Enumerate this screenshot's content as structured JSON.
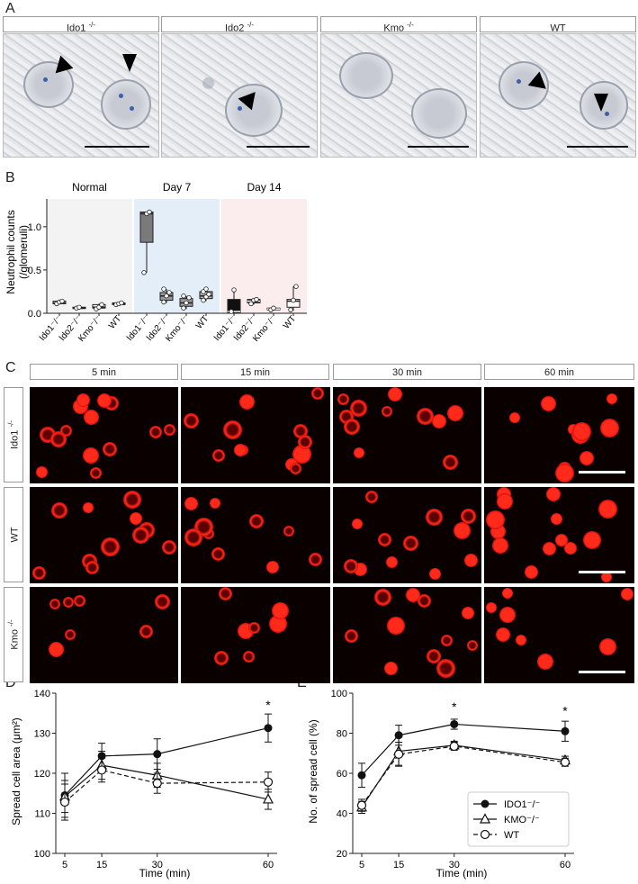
{
  "panels": {
    "a": "A",
    "b": "B",
    "c": "C",
    "d": "D",
    "e": "E"
  },
  "panel_a": {
    "headers": [
      {
        "base": "Ido1",
        "sup": "-/-"
      },
      {
        "base": "Ido2",
        "sup": "-/-"
      },
      {
        "base": "Kmo",
        "sup": "-/-"
      },
      {
        "base": "WT",
        "sup": ""
      }
    ]
  },
  "panel_c": {
    "time_headers": [
      "5 min",
      "15 min",
      "30 min",
      "60 min"
    ],
    "row_labels": [
      {
        "base": "Ido1",
        "sup": "-/-"
      },
      {
        "base": "WT",
        "sup": ""
      },
      {
        "base": "Kmo",
        "sup": "-/-"
      }
    ]
  },
  "chart_data": [
    {
      "type": "box",
      "ylabel_line1": "Neutrophil counts",
      "ylabel_line2": "(/glomeruli)",
      "ylim": [
        0,
        1.3
      ],
      "yticks": [
        "0.0",
        "0.5",
        "1.0"
      ],
      "groups": [
        {
          "name": "Normal",
          "bg": "#f3f3f3"
        },
        {
          "name": "Day 7",
          "bg": "#e3eef8"
        },
        {
          "name": "Day 14",
          "bg": "#fbeced"
        }
      ],
      "categories": [
        "Ido1⁻/⁻",
        "Ido2⁻/⁻",
        "Kmo⁻/⁻",
        "WT"
      ],
      "boxes": [
        {
          "group": 0,
          "cat": 0,
          "min": 0.1,
          "q1": 0.11,
          "median": 0.12,
          "q3": 0.14,
          "max": 0.15,
          "fill": "#ffffff",
          "points": [
            0.11,
            0.13,
            0.14
          ]
        },
        {
          "group": 0,
          "cat": 1,
          "min": 0.06,
          "q1": 0.06,
          "median": 0.06,
          "q3": 0.07,
          "max": 0.07,
          "fill": "#ffffff",
          "points": [
            0.06,
            0.07
          ]
        },
        {
          "group": 0,
          "cat": 2,
          "min": 0.04,
          "q1": 0.06,
          "median": 0.07,
          "q3": 0.1,
          "max": 0.11,
          "fill": "#ffffff",
          "points": [
            0.05,
            0.07,
            0.1
          ]
        },
        {
          "group": 0,
          "cat": 3,
          "min": 0.09,
          "q1": 0.1,
          "median": 0.11,
          "q3": 0.12,
          "max": 0.13,
          "fill": "#ffffff",
          "points": [
            0.1,
            0.11,
            0.12
          ]
        },
        {
          "group": 1,
          "cat": 0,
          "min": 0.47,
          "q1": 0.82,
          "median": 1.15,
          "q3": 1.17,
          "max": 1.17,
          "fill": "#7a7a7a",
          "points": [
            0.47,
            1.15,
            1.17
          ]
        },
        {
          "group": 1,
          "cat": 1,
          "min": 0.12,
          "q1": 0.15,
          "median": 0.2,
          "q3": 0.24,
          "max": 0.28,
          "fill": "#9a9a9a",
          "points": [
            0.13,
            0.2,
            0.24,
            0.28
          ]
        },
        {
          "group": 1,
          "cat": 2,
          "min": 0.05,
          "q1": 0.08,
          "median": 0.12,
          "q3": 0.17,
          "max": 0.2,
          "fill": "#9a9a9a",
          "points": [
            0.06,
            0.12,
            0.18,
            0.2
          ]
        },
        {
          "group": 1,
          "cat": 3,
          "min": 0.14,
          "q1": 0.17,
          "median": 0.2,
          "q3": 0.25,
          "max": 0.29,
          "fill": "#b0b0b0",
          "points": [
            0.15,
            0.19,
            0.22,
            0.25,
            0.28
          ]
        },
        {
          "group": 2,
          "cat": 0,
          "min": 0.0,
          "q1": 0.0,
          "median": 0.02,
          "q3": 0.16,
          "max": 0.27,
          "fill": "#111111",
          "points": [
            0.02,
            0.27
          ]
        },
        {
          "group": 2,
          "cat": 1,
          "min": 0.1,
          "q1": 0.12,
          "median": 0.14,
          "q3": 0.16,
          "max": 0.17,
          "fill": "#111111",
          "points": [
            0.11,
            0.15,
            0.16
          ]
        },
        {
          "group": 2,
          "cat": 2,
          "min": 0.03,
          "q1": 0.04,
          "median": 0.05,
          "q3": 0.06,
          "max": 0.07,
          "fill": "#111111",
          "points": [
            0.04,
            0.06
          ]
        },
        {
          "group": 2,
          "cat": 3,
          "min": 0.03,
          "q1": 0.07,
          "median": 0.14,
          "q3": 0.16,
          "max": 0.31,
          "fill": "#ffffff",
          "points": [
            0.04,
            0.15,
            0.31
          ]
        }
      ]
    },
    {
      "type": "line",
      "xlabel": "Time (min)",
      "ylabel": "Spread cell area (μm²)",
      "ylim": [
        100,
        140
      ],
      "yticks": [
        100,
        110,
        120,
        130,
        140
      ],
      "x": [
        5,
        15,
        30,
        60
      ],
      "series": [
        {
          "values": [
            114.5,
            124.3,
            124.8,
            131.3
          ],
          "err": [
            5.5,
            3.2,
            3.8,
            3.5
          ],
          "marker": "circle-filled",
          "dash": "solid"
        },
        {
          "values": [
            114.2,
            122.0,
            119.5,
            113.5
          ],
          "err": [
            4.0,
            3.5,
            3.0,
            2.5
          ],
          "marker": "triangle-open",
          "dash": "solid"
        },
        {
          "values": [
            112.8,
            120.8,
            117.5,
            117.8
          ],
          "err": [
            4.5,
            3.0,
            2.5,
            2.5
          ],
          "marker": "circle-open",
          "dash": "dashed"
        }
      ],
      "annotations": [
        {
          "x": 60,
          "y": 136,
          "text": "*"
        }
      ]
    },
    {
      "type": "line",
      "xlabel": "Time (min)",
      "ylabel": "No. of spread cell (%)",
      "ylim": [
        20,
        100
      ],
      "yticks": [
        20,
        40,
        60,
        80,
        100
      ],
      "x": [
        5,
        15,
        30,
        60
      ],
      "legend_position": "lower-right",
      "series": [
        {
          "name": "IDO1⁻/⁻",
          "values": [
            59,
            79,
            84.5,
            81
          ],
          "err": [
            6,
            5,
            2.5,
            5
          ],
          "marker": "circle-filled",
          "dash": "solid"
        },
        {
          "name": "KMO⁻/⁻",
          "values": [
            43,
            71,
            74,
            66.5
          ],
          "err": [
            3,
            7,
            2,
            2
          ],
          "marker": "triangle-open",
          "dash": "solid"
        },
        {
          "name": "WT",
          "values": [
            44,
            69.5,
            73.5,
            65.5
          ],
          "err": [
            3,
            6,
            2,
            2
          ],
          "marker": "circle-open",
          "dash": "dashed"
        }
      ],
      "annotations": [
        {
          "x": 30,
          "y": 91,
          "text": "*"
        },
        {
          "x": 60,
          "y": 89,
          "text": "*"
        }
      ]
    }
  ]
}
